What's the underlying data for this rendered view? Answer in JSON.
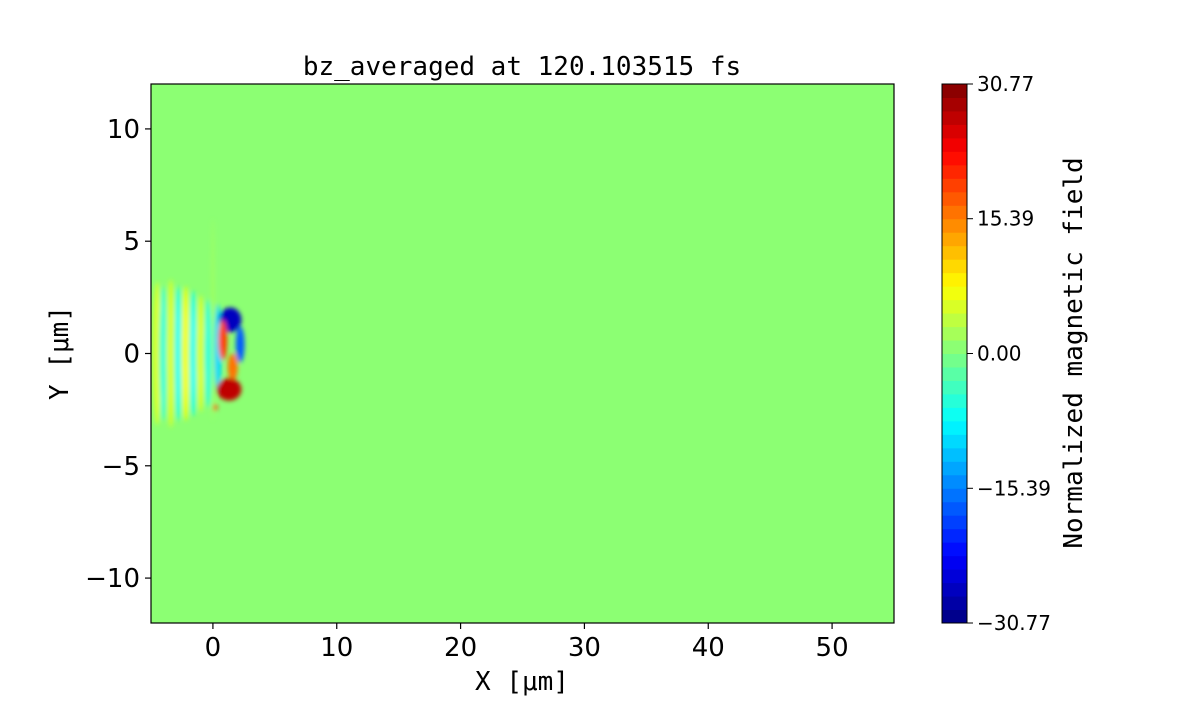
{
  "chart_data": {
    "type": "heatmap",
    "title": "bz_averaged at 120.103515 fs",
    "xlabel": "X [μm]",
    "ylabel": "Y [μm]",
    "xlim": [
      -5,
      55
    ],
    "ylim": [
      -12,
      12
    ],
    "xticks": [
      0,
      10,
      20,
      30,
      40,
      50
    ],
    "yticks": [
      -10,
      -5,
      0,
      5,
      10
    ],
    "xtick_labels": [
      "0",
      "10",
      "20",
      "30",
      "40",
      "50"
    ],
    "ytick_labels": [
      "−10",
      "−5",
      "0",
      "5",
      "10"
    ],
    "colormap": "jet",
    "background_value": 0.0,
    "colorbar": {
      "label": "Normalized magnetic field",
      "range": [
        -30.77,
        30.77
      ],
      "levels": 40,
      "ticks": [
        30.77,
        15.39,
        0.0,
        -15.39,
        -30.77
      ],
      "tick_labels": [
        "30.77",
        "15.39",
        "0.00",
        "−15.39",
        "−30.77"
      ]
    },
    "features": [
      {
        "x": -4.5,
        "y": 0,
        "rx": 0.35,
        "ry": 3.2,
        "value": 5
      },
      {
        "x": -4.0,
        "y": 0,
        "rx": 0.3,
        "ry": 3.0,
        "value": -6
      },
      {
        "x": -3.4,
        "y": 0,
        "rx": 0.35,
        "ry": 3.3,
        "value": 6
      },
      {
        "x": -2.8,
        "y": 0,
        "rx": 0.3,
        "ry": 3.0,
        "value": -7
      },
      {
        "x": -2.2,
        "y": 0,
        "rx": 0.35,
        "ry": 3.0,
        "value": 7
      },
      {
        "x": -1.6,
        "y": 0,
        "rx": 0.3,
        "ry": 2.8,
        "value": -7
      },
      {
        "x": -1.0,
        "y": 0,
        "rx": 0.35,
        "ry": 2.6,
        "value": 6
      },
      {
        "x": -0.4,
        "y": 0,
        "rx": 0.3,
        "ry": 2.4,
        "value": -6
      },
      {
        "x": 0.0,
        "y": 1.5,
        "rx": 0.1,
        "ry": 4.5,
        "value": 3
      },
      {
        "x": 0.4,
        "y": 0.2,
        "rx": 0.3,
        "ry": 2.0,
        "value": -10
      },
      {
        "x": 1.4,
        "y": 1.5,
        "rx": 0.9,
        "ry": 0.55,
        "value": -27
      },
      {
        "x": 2.2,
        "y": 0.4,
        "rx": 0.35,
        "ry": 0.8,
        "value": -18
      },
      {
        "x": 0.8,
        "y": 0.6,
        "rx": 0.35,
        "ry": 0.9,
        "value": 20
      },
      {
        "x": 1.6,
        "y": -0.6,
        "rx": 0.4,
        "ry": 0.6,
        "value": 16
      },
      {
        "x": 1.3,
        "y": -1.6,
        "rx": 1.0,
        "ry": 0.5,
        "value": 27
      },
      {
        "x": 0.2,
        "y": -2.4,
        "rx": 0.15,
        "ry": 0.15,
        "value": 22
      }
    ]
  }
}
